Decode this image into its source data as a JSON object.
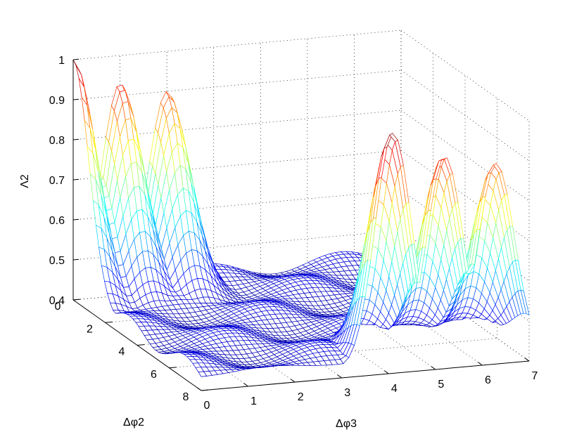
{
  "chart_data": {
    "type": "surface",
    "style": "mesh",
    "colormap": "jet",
    "title": "",
    "xlabel": "Δφ3",
    "ylabel": "Δφ2",
    "zlabel": "Λ2",
    "x_range": [
      0,
      7
    ],
    "y_range": [
      0,
      8
    ],
    "zlim": [
      0.4,
      1
    ],
    "x_ticks": [
      "0",
      "1",
      "2",
      "3",
      "4",
      "5",
      "6",
      "7"
    ],
    "y_ticks": [
      "0",
      "2",
      "4",
      "6",
      "8"
    ],
    "z_ticks": [
      "0.4",
      "0.5",
      "0.6",
      "0.7",
      "0.8",
      "0.9",
      "1"
    ],
    "grid": true,
    "surface": {
      "description_free_parameters": true,
      "ridges_near_y0": [
        {
          "x": 0.0,
          "peak": 1.0
        },
        {
          "x": 1.0,
          "peak": 0.93
        },
        {
          "x": 2.0,
          "peak": 0.9
        }
      ],
      "ridges_near_y8": [
        {
          "x": 4.1,
          "peak": 1.0
        },
        {
          "x": 5.2,
          "peak": 0.93
        },
        {
          "x": 6.3,
          "peak": 0.9
        }
      ],
      "valley_min": 0.42,
      "x_samples": 60,
      "y_samples": 45
    }
  }
}
